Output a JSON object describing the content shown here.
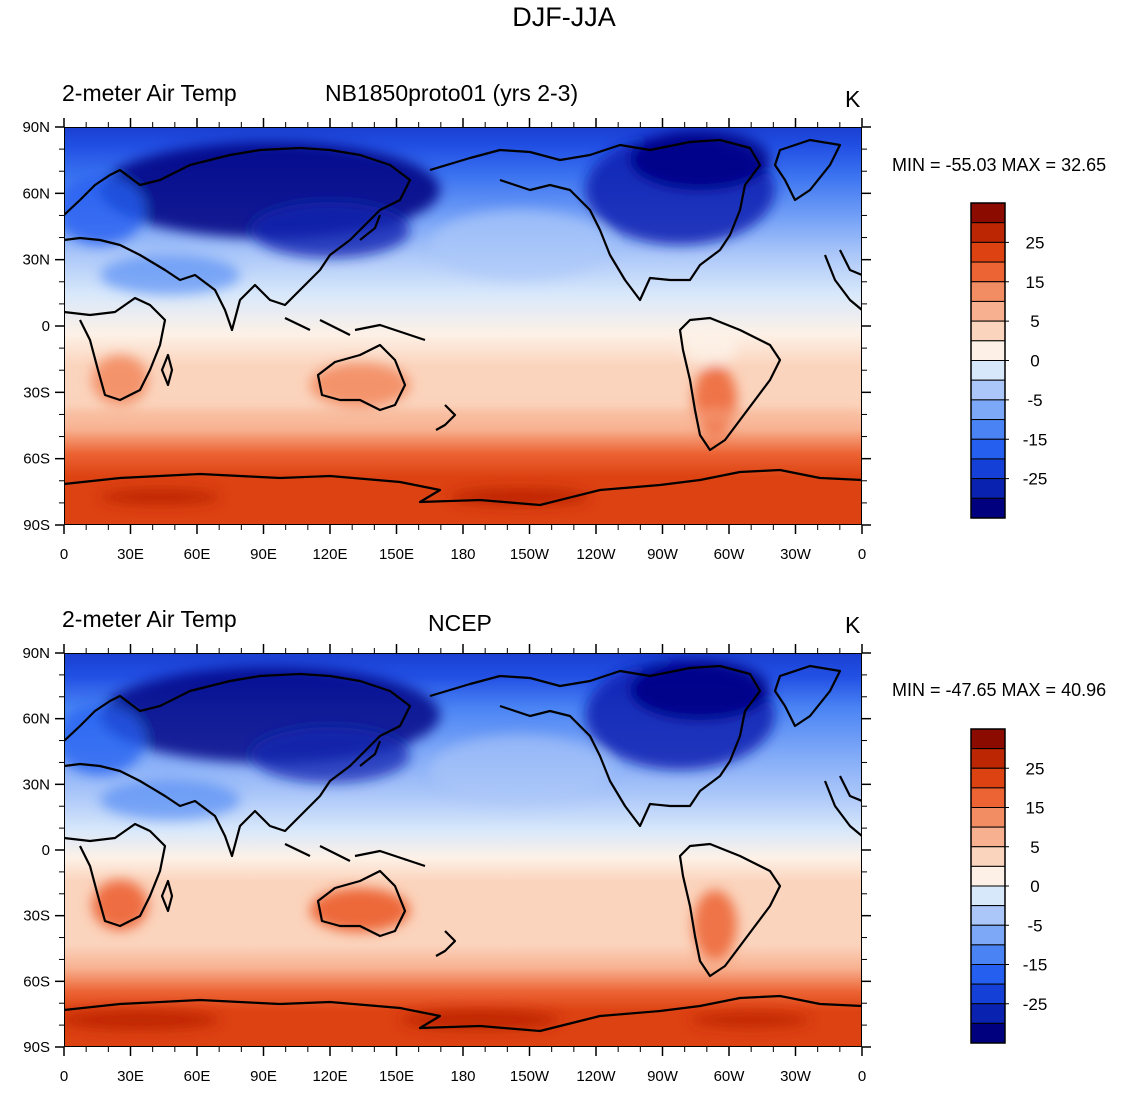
{
  "figure": {
    "title": "DJF-JJA"
  },
  "panels": [
    {
      "variable": "2-meter Air Temp",
      "case": "NB1850proto01 (yrs 2-3)",
      "units": "K",
      "stats": "MIN = -55.03 MAX =  32.65"
    },
    {
      "variable": "2-meter Air Temp",
      "case": "NCEP",
      "units": "K",
      "stats": "MIN = -47.65 MAX =  40.96"
    }
  ],
  "chart_data": {
    "type": "heatmap",
    "projection": "cylindrical equidistant, centered on 180",
    "x_ticks": [
      "0",
      "30E",
      "60E",
      "90E",
      "120E",
      "150E",
      "180",
      "150W",
      "120W",
      "90W",
      "60W",
      "30W",
      "0"
    ],
    "y_ticks": [
      "90N",
      "60N",
      "30N",
      "0",
      "30S",
      "60S",
      "90S"
    ],
    "x_range_deg": [
      0,
      360
    ],
    "y_range_deg": [
      -90,
      90
    ],
    "colorbar": {
      "levels": [
        -30,
        -25,
        -20,
        -15,
        -10,
        -5,
        -2,
        0,
        2,
        5,
        10,
        15,
        20,
        25,
        30
      ],
      "labels": [
        "25",
        "15",
        "5",
        "0",
        "-5",
        "-15",
        "-25"
      ],
      "colors": [
        "#00007f",
        "#0a22b0",
        "#1540d8",
        "#245ff0",
        "#4a84f4",
        "#7da7f7",
        "#abc7f9",
        "#d8e8fb",
        "#fdf1e7",
        "#fbd4bd",
        "#f8b190",
        "#f28c63",
        "#ec6334",
        "#dd4212",
        "#bd2602",
        "#8b0b00"
      ]
    }
  }
}
